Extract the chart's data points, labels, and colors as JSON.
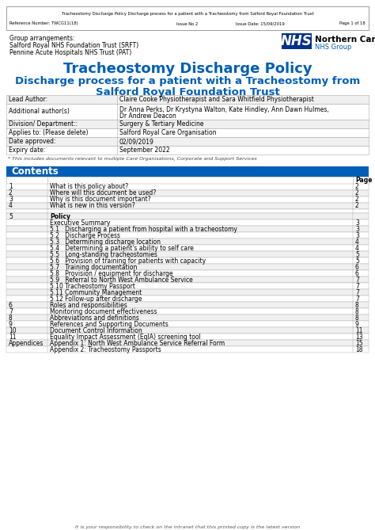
{
  "header_text1": "Tracheostomy Discharge Policy Discharge process for a patient with a Tracheostomy from Salford Royal Foundation Trust",
  "header_text2": "Reference Number: TWCG11(18)          Issue No 2          Issue Date: 15/09/2019                    Page 1 of 18",
  "group_arrangements": [
    "Group arrangements:",
    "Salford Royal NHS Foundation Trust (SRFT)",
    "Pennine Acute Hospitals NHS Trust (PAT)"
  ],
  "nhs_label": "NHS",
  "alliance_label": "Northern Care Alliance",
  "nhs_group_label": "NHS Group",
  "title_line1": "Tracheostomy Discharge Policy",
  "title_line2": "Discharge process for a patient with a Tracheostomy from",
  "title_line3": "Salford Royal Foundation Trust",
  "title_color": "#005EB8",
  "info_table": [
    [
      "Lead Author:",
      "Claire Cooke Physiotherapist and Sara Whitfield Physiotherapist"
    ],
    [
      "Additional author(s)",
      "Dr Anna Perks, Dr Krystyna Walton, Kate Hindley, Ann Dawn Hulmes,\nDr Andrew Deacon"
    ],
    [
      "Division/ Department::",
      "Surgery & Tertiary Medicine"
    ],
    [
      "Applies to: (Please delete)",
      "Salford Royal Care Organisation"
    ],
    [
      "Date approved:",
      "02/09/2019"
    ],
    [
      "Expiry date:",
      "September 2022"
    ]
  ],
  "footnote": "* This includes documents relevant to multiple Care Organisations, Corporate and Support Services",
  "contents_header": "Contents",
  "contents_header_bg": "#005EB8",
  "contents_rows": [
    [
      "1",
      "What is this policy about?",
      "2",
      false
    ],
    [
      "2",
      "Where will this document be used?",
      "2",
      false
    ],
    [
      "3",
      "Why is this document important?",
      "2",
      false
    ],
    [
      "4",
      "What is new in this version?",
      "2",
      false
    ],
    [
      "",
      "",
      "",
      false
    ],
    [
      "5",
      "Policy",
      "",
      true
    ],
    [
      "",
      "Executive Summary",
      "3",
      false
    ],
    [
      "",
      "5.1   Discharging a patient from hospital with a tracheostomy",
      "3",
      false
    ],
    [
      "",
      "5.2   Discharge Process",
      "3",
      false
    ],
    [
      "",
      "5.3   Determining discharge location",
      "4",
      false
    ],
    [
      "",
      "5.4   Determining a patient's ability to self care",
      "4",
      false
    ],
    [
      "",
      "5.5   Long-standing tracheostomies",
      "5",
      false
    ],
    [
      "",
      "5.6   Provision of training for patients with capacity",
      "5",
      false
    ],
    [
      "",
      "5.7   Training documentation",
      "6",
      false
    ],
    [
      "",
      "5.8   Provision / equipment for discharge",
      "6",
      false
    ],
    [
      "",
      "5.9   Referral to North West Ambulance Service",
      "7",
      false
    ],
    [
      "",
      "5.10 Tracheostomy Passport",
      "7",
      false
    ],
    [
      "",
      "5.11 Community Management",
      "7",
      false
    ],
    [
      "",
      "5.12 Follow-up after discharge",
      "7",
      false
    ],
    [
      "6",
      "Roles and responsibilities",
      "8",
      false
    ],
    [
      "7",
      "Monitoring document effectiveness",
      "8",
      false
    ],
    [
      "8",
      "Abbreviations and definitions",
      "8",
      false
    ],
    [
      "9",
      "References and Supporting Documents",
      "9",
      false
    ],
    [
      "10",
      "Document Control Information",
      "11",
      false
    ],
    [
      "11",
      "Equality Impact Assessment (EqIA) screening tool",
      "13",
      false
    ],
    [
      "Appendices",
      "Appendix 1: North West Ambulance Service Referral Form",
      "15",
      false
    ],
    [
      "",
      "Appendix 2: Tracheostomy Passports",
      "18",
      false
    ]
  ],
  "footer_text": "It is your responsibility to check on the intranet that this printed copy is the latest version",
  "bg_white": "#ffffff",
  "nhs_blue": "#003087",
  "border_color": "#aaaaaa",
  "shaded_color": "#f0f0f0"
}
